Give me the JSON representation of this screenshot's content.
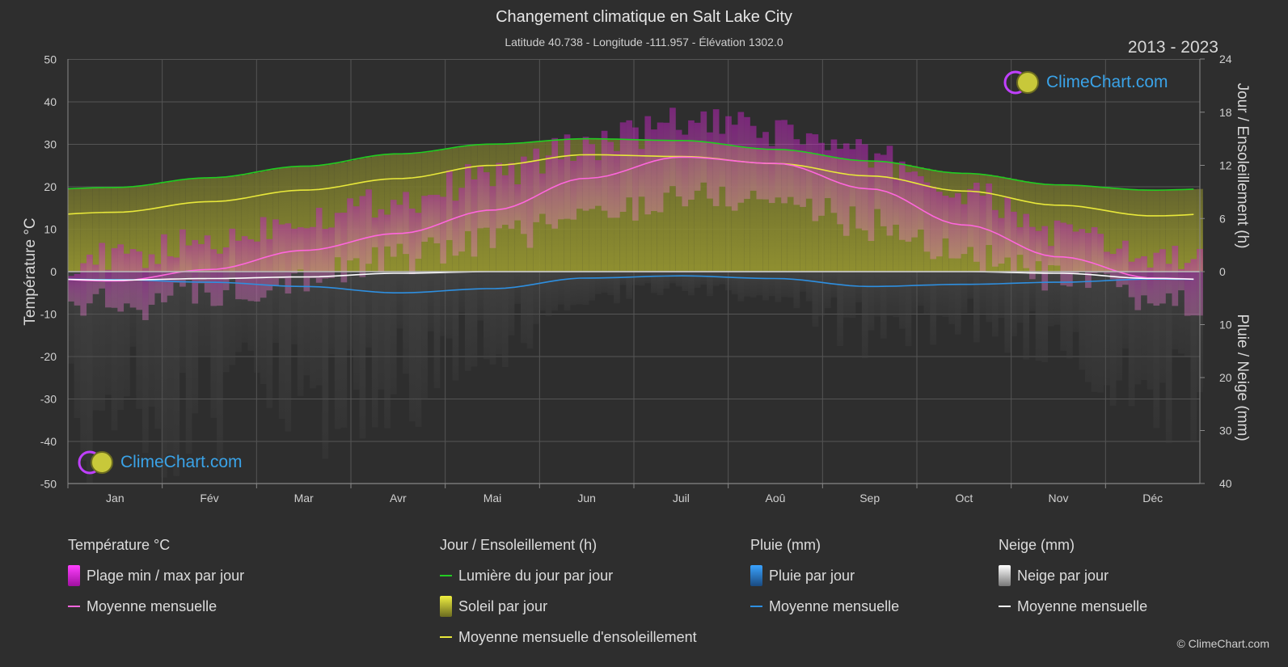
{
  "header": {
    "title": "Changement climatique en Salt Lake City",
    "subtitle": "Latitude 40.738 - Longitude -111.957 - Élévation 1302.0",
    "years": "2013 - 2023"
  },
  "logo_text": "ClimeChart.com",
  "copyright": "© ClimeChart.com",
  "chart_data": {
    "type": "area",
    "title": "Changement climatique en Salt Lake City",
    "categories": [
      "Jan",
      "Fév",
      "Mar",
      "Avr",
      "Mai",
      "Jun",
      "Juil",
      "Aoû",
      "Sep",
      "Oct",
      "Nov",
      "Déc"
    ],
    "left_axis": {
      "label": "Température °C",
      "ticks": [
        50,
        40,
        30,
        20,
        10,
        0,
        -10,
        -20,
        -30,
        -40,
        -50
      ],
      "range": [
        -50,
        50
      ]
    },
    "right_axis_top": {
      "label": "Jour / Ensoleillement (h)",
      "ticks": [
        24,
        18,
        12,
        6,
        0
      ],
      "range": [
        0,
        24
      ]
    },
    "right_axis_bottom": {
      "label": "Pluie / Neige (mm)",
      "ticks": [
        0,
        10,
        20,
        30,
        40
      ],
      "range": [
        0,
        40
      ]
    },
    "series": [
      {
        "name": "Lumière du jour par jour",
        "color": "#22cc22",
        "unit": "h",
        "values": [
          9.5,
          10.6,
          11.9,
          13.3,
          14.4,
          15.0,
          14.8,
          13.8,
          12.5,
          11.1,
          9.8,
          9.2
        ]
      },
      {
        "name": "Moyenne mensuelle d'ensoleillement",
        "color": "#e8e83a",
        "unit": "h",
        "values": [
          6.7,
          7.9,
          9.2,
          10.5,
          12.0,
          13.2,
          13.0,
          12.2,
          10.8,
          9.1,
          7.5,
          6.3
        ]
      },
      {
        "name": "Moyenne mensuelle",
        "group": "Température °C",
        "color": "#ff66dd",
        "unit": "°C",
        "values": [
          -2.2,
          0.5,
          5.0,
          9.0,
          14.5,
          22.0,
          27.0,
          25.5,
          19.5,
          11.0,
          3.5,
          -1.5
        ]
      },
      {
        "name": "Moyenne mensuelle",
        "group": "Pluie (mm)",
        "color": "#2e8fe0",
        "unit": "mm",
        "values": [
          1.5,
          2.0,
          2.8,
          4.0,
          3.2,
          1.2,
          0.8,
          1.3,
          2.8,
          2.4,
          2.0,
          1.4
        ]
      },
      {
        "name": "Moyenne mensuelle",
        "group": "Neige (mm)",
        "color": "#ffffff",
        "unit": "mm",
        "values": [
          1.6,
          1.3,
          1.0,
          0.3,
          0.0,
          0.0,
          0.0,
          0.0,
          0.0,
          0.0,
          0.3,
          1.3
        ]
      },
      {
        "name": "Plage min / max par jour",
        "color": "#e020e0",
        "unit": "°C",
        "max": [
          3,
          7,
          13,
          17,
          23,
          30,
          35,
          33,
          27,
          18,
          9,
          3
        ],
        "min": [
          -8,
          -5,
          -1,
          3,
          8,
          13,
          18,
          17,
          11,
          4,
          -2,
          -7
        ]
      }
    ],
    "grid": true
  },
  "legend": [
    {
      "title": "Température °C",
      "items": [
        {
          "label": "Plage min / max par jour",
          "kind": "box",
          "color": "#e020e0"
        },
        {
          "label": "Moyenne mensuelle",
          "kind": "line",
          "color": "#ff66dd"
        }
      ]
    },
    {
      "title": "Jour / Ensoleillement (h)",
      "items": [
        {
          "label": "Lumière du jour par jour",
          "kind": "line",
          "color": "#22cc22"
        },
        {
          "label": "Soleil par jour",
          "kind": "box",
          "color": "#c8c83a"
        },
        {
          "label": "Moyenne mensuelle d'ensoleillement",
          "kind": "line",
          "color": "#e8e83a"
        }
      ]
    },
    {
      "title": "Pluie (mm)",
      "items": [
        {
          "label": "Pluie par jour",
          "kind": "box",
          "color": "#2e8fe0"
        },
        {
          "label": "Moyenne mensuelle",
          "kind": "line",
          "color": "#2e8fe0"
        }
      ]
    },
    {
      "title": "Neige (mm)",
      "items": [
        {
          "label": "Neige par jour",
          "kind": "box",
          "color": "#e8e8e8"
        },
        {
          "label": "Moyenne mensuelle",
          "kind": "line",
          "color": "#ffffff"
        }
      ]
    }
  ]
}
